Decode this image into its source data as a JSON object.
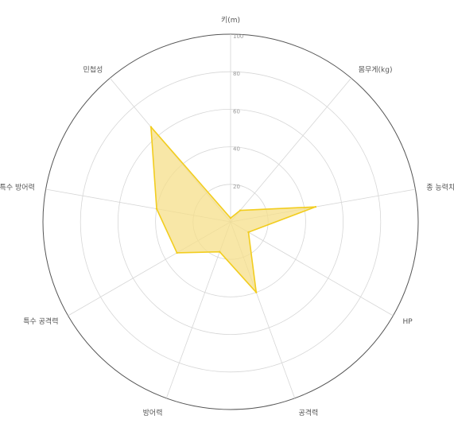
{
  "colors": {
    "series_fill": "#f5df8a",
    "series_stroke": "#f2cd1f",
    "grid": "#d6d6d6",
    "outer_ring": "#555555"
  },
  "chart_data": {
    "type": "radar",
    "title": "",
    "axes": [
      "키(m)",
      "몸무게(kg)",
      "종 능력치",
      "HP",
      "공격력",
      "방어력",
      "특수 공격력",
      "특수 방어력",
      "민첩성"
    ],
    "rlim": [
      0,
      100
    ],
    "ticks": [
      "20",
      "40",
      "60",
      "80",
      "100"
    ],
    "grid": true,
    "series": [
      {
        "values": [
          2,
          8,
          46,
          11,
          40,
          17,
          33,
          40,
          66
        ]
      }
    ]
  }
}
